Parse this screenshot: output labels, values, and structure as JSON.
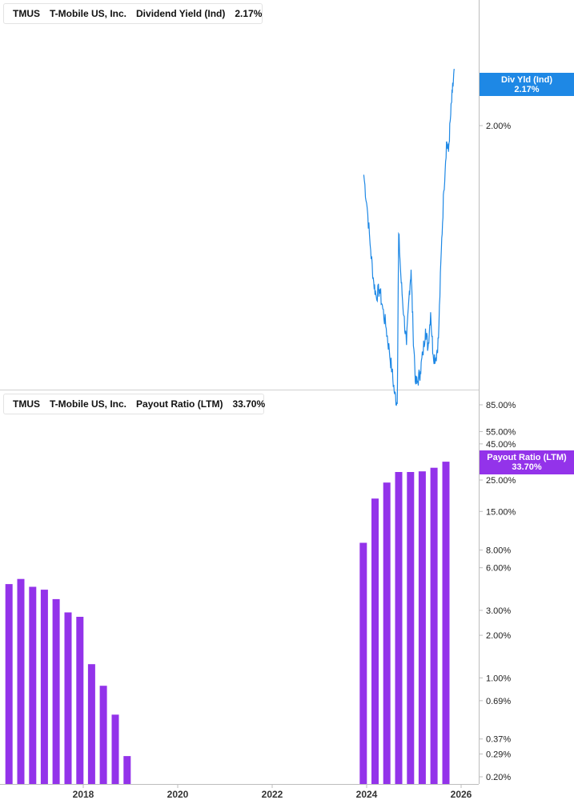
{
  "colors": {
    "yield": "#1e88e5",
    "payout": "#9333ea",
    "axis": "#bdbdbd"
  },
  "top_legend": {
    "ticker": "TMUS",
    "company": "T-Mobile US, Inc.",
    "metric": "Dividend Yield (Ind)",
    "value": "2.17%"
  },
  "bottom_legend": {
    "ticker": "TMUS",
    "company": "T-Mobile US, Inc.",
    "metric": "Payout Ratio (LTM)",
    "value": "33.70%"
  },
  "top_tag": {
    "label": "Div Yld (Ind)",
    "value": "2.17%"
  },
  "bottom_tag": {
    "label": "Payout Ratio (LTM)",
    "value": "33.70%"
  },
  "chart_data": [
    {
      "type": "line",
      "title": "Dividend Yield (Ind)",
      "series": [
        {
          "name": "Dividend Yield (Ind)",
          "points": [
            [
              "2023-12-10",
              1.85
            ],
            [
              "2024-01-05",
              1.75
            ],
            [
              "2024-02-01",
              1.62
            ],
            [
              "2024-02-25",
              1.52
            ],
            [
              "2024-03-15",
              1.48
            ],
            [
              "2024-04-10",
              1.5
            ],
            [
              "2024-05-05",
              1.44
            ],
            [
              "2024-06-01",
              1.38
            ],
            [
              "2024-06-25",
              1.31
            ],
            [
              "2024-07-15",
              1.25
            ],
            [
              "2024-08-05",
              1.18
            ],
            [
              "2024-08-25",
              1.15
            ],
            [
              "2024-09-05",
              1.67
            ],
            [
              "2024-09-25",
              1.52
            ],
            [
              "2024-10-15",
              1.42
            ],
            [
              "2024-11-05",
              1.33
            ],
            [
              "2024-11-25",
              1.48
            ],
            [
              "2024-12-10",
              1.56
            ],
            [
              "2024-12-25",
              1.38
            ],
            [
              "2025-01-15",
              1.21
            ],
            [
              "2025-02-01",
              1.22
            ],
            [
              "2025-02-20",
              1.25
            ],
            [
              "2025-03-10",
              1.3
            ],
            [
              "2025-04-01",
              1.38
            ],
            [
              "2025-04-20",
              1.32
            ],
            [
              "2025-05-10",
              1.43
            ],
            [
              "2025-05-30",
              1.3
            ],
            [
              "2025-06-20",
              1.29
            ],
            [
              "2025-07-10",
              1.35
            ],
            [
              "2025-08-01",
              1.62
            ],
            [
              "2025-08-20",
              1.8
            ],
            [
              "2025-09-10",
              1.95
            ],
            [
              "2025-09-25",
              1.92
            ],
            [
              "2025-10-10",
              2.02
            ],
            [
              "2025-10-25",
              2.1
            ],
            [
              "2025-11-10",
              2.17
            ]
          ]
        }
      ],
      "y_ticks": [
        {
          "value": 2.0,
          "label": "2.00%"
        }
      ],
      "ylim": [
        1.15,
        2.22
      ]
    },
    {
      "type": "bar",
      "title": "Payout Ratio (LTM)",
      "scale": "log",
      "series": [
        {
          "name": "Payout Ratio (LTM)",
          "points": [
            [
              "2016-06-30",
              4.6
            ],
            [
              "2016-09-30",
              5.0
            ],
            [
              "2016-12-31",
              4.4
            ],
            [
              "2017-03-31",
              4.2
            ],
            [
              "2017-06-30",
              3.6
            ],
            [
              "2017-09-30",
              2.9
            ],
            [
              "2017-12-31",
              2.7
            ],
            [
              "2018-03-31",
              1.25
            ],
            [
              "2018-06-30",
              0.88
            ],
            [
              "2018-09-30",
              0.55
            ],
            [
              "2018-12-31",
              0.28
            ],
            [
              "2023-12-31",
              9.0
            ],
            [
              "2024-03-31",
              18.5
            ],
            [
              "2024-06-30",
              24.0
            ],
            [
              "2024-09-30",
              28.5
            ],
            [
              "2024-12-31",
              28.5
            ],
            [
              "2025-03-31",
              28.8
            ],
            [
              "2025-06-30",
              30.5
            ],
            [
              "2025-09-30",
              33.7
            ]
          ]
        }
      ],
      "y_ticks": [
        {
          "value": 85,
          "label": "85.00%"
        },
        {
          "value": 55,
          "label": "55.00%"
        },
        {
          "value": 45,
          "label": "45.00%"
        },
        {
          "value": 25,
          "label": "25.00%"
        },
        {
          "value": 15,
          "label": "15.00%"
        },
        {
          "value": 8,
          "label": "8.00%"
        },
        {
          "value": 6,
          "label": "6.00%"
        },
        {
          "value": 3,
          "label": "3.00%"
        },
        {
          "value": 2,
          "label": "2.00%"
        },
        {
          "value": 1,
          "label": "1.00%"
        },
        {
          "value": 0.69,
          "label": "0.69%"
        },
        {
          "value": 0.37,
          "label": "0.37%"
        },
        {
          "value": 0.29,
          "label": "0.29%"
        },
        {
          "value": 0.2,
          "label": "0.20%"
        }
      ]
    }
  ],
  "x_axis": {
    "ticks": [
      {
        "date": "2018-01-01",
        "label": "2018"
      },
      {
        "date": "2020-01-01",
        "label": "2020"
      },
      {
        "date": "2022-01-01",
        "label": "2022"
      },
      {
        "date": "2024-01-01",
        "label": "2024"
      },
      {
        "date": "2026-01-01",
        "label": "2026"
      }
    ]
  }
}
